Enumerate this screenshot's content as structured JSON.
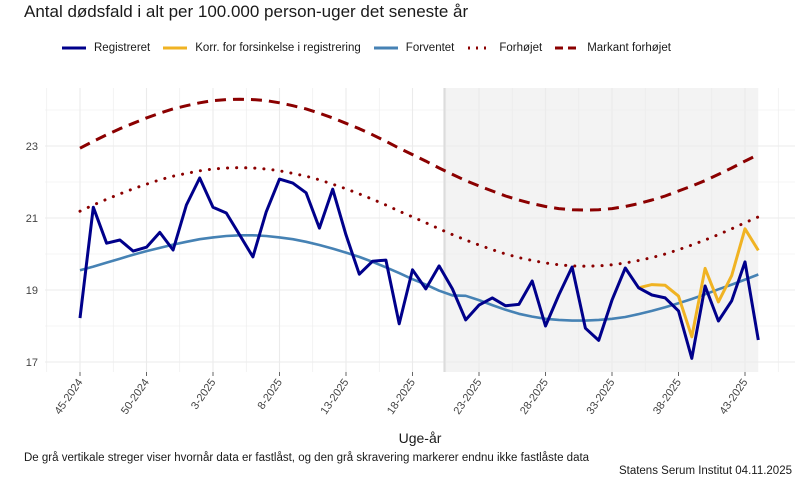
{
  "title": "Antal dødsfald i alt per 100.000 person-uger det seneste år",
  "legend": [
    {
      "label": "Registreret",
      "color": "#00008B",
      "style": "solid"
    },
    {
      "label": "Korr. for forsinkelse i registrering",
      "color": "#F0B323",
      "style": "solid"
    },
    {
      "label": "Forventet",
      "color": "#4682B4",
      "style": "solid"
    },
    {
      "label": "Forhøjet",
      "color": "#8B0000",
      "style": "dotted"
    },
    {
      "label": "Markant forhøjet",
      "color": "#8B0000",
      "style": "dashed"
    }
  ],
  "note": "De grå vertikale streger viser hvornår data er fastlåst, og den grå skravering markerer endnu ikke fastlåste data",
  "source": "Statens Serum Institut  04.11.2025",
  "chart_data": {
    "type": "line",
    "title": "Antal dødsfald i alt per 100.000 person-uger det seneste år",
    "xlabel": "Uge-år",
    "ylabel": "",
    "ylim": [
      16.7,
      24.8
    ],
    "yticks": [
      17,
      19,
      21,
      23
    ],
    "xtick_labels": [
      "45-2024",
      "50-2024",
      "3-2025",
      "8-2025",
      "13-2025",
      "18-2025",
      "23-2025",
      "28-2025",
      "33-2025",
      "38-2025",
      "43-2025"
    ],
    "x": [
      "45-2024",
      "46-2024",
      "47-2024",
      "48-2024",
      "49-2024",
      "50-2024",
      "51-2024",
      "52-2024",
      "1-2025",
      "2-2025",
      "3-2025",
      "4-2025",
      "5-2025",
      "6-2025",
      "7-2025",
      "8-2025",
      "9-2025",
      "10-2025",
      "11-2025",
      "12-2025",
      "13-2025",
      "14-2025",
      "15-2025",
      "16-2025",
      "17-2025",
      "18-2025",
      "19-2025",
      "20-2025",
      "21-2025",
      "22-2025",
      "23-2025",
      "24-2025",
      "25-2025",
      "26-2025",
      "27-2025",
      "28-2025",
      "29-2025",
      "30-2025",
      "31-2025",
      "32-2025",
      "33-2025",
      "34-2025",
      "35-2025",
      "36-2025",
      "37-2025",
      "38-2025",
      "39-2025",
      "40-2025",
      "41-2025",
      "42-2025",
      "43-2025",
      "44-2025"
    ],
    "grid": true,
    "legend_position": "top",
    "shaded_from_week": "20-2025",
    "series": [
      {
        "name": "Registreret",
        "values": [
          18.22,
          21.3,
          20.3,
          20.39,
          20.08,
          20.19,
          20.6,
          20.11,
          21.36,
          22.11,
          21.3,
          21.14,
          20.53,
          19.92,
          21.17,
          22.08,
          21.97,
          21.7,
          20.72,
          21.8,
          20.53,
          19.44,
          19.8,
          19.83,
          18.06,
          19.56,
          19.03,
          19.67,
          19.03,
          18.17,
          18.58,
          18.78,
          18.56,
          18.6,
          19.25,
          18.0,
          18.86,
          19.64,
          17.94,
          17.6,
          18.72,
          19.61,
          19.06,
          18.86,
          18.78,
          18.42,
          17.1,
          19.11,
          18.14,
          18.7,
          19.78,
          17.61
        ]
      },
      {
        "name": "Korr. for forsinkelse i registrering",
        "values": [
          null,
          null,
          null,
          null,
          null,
          null,
          null,
          null,
          null,
          null,
          null,
          null,
          null,
          null,
          null,
          null,
          null,
          null,
          null,
          null,
          null,
          null,
          null,
          null,
          null,
          null,
          null,
          null,
          null,
          null,
          null,
          null,
          null,
          null,
          null,
          null,
          null,
          null,
          null,
          null,
          null,
          null,
          19.06,
          19.15,
          19.13,
          18.83,
          17.7,
          19.6,
          18.67,
          19.4,
          20.7,
          20.1
        ]
      },
      {
        "name": "Forventet",
        "values": [
          19.55,
          19.65,
          19.76,
          19.87,
          19.98,
          20.08,
          20.17,
          20.26,
          20.34,
          20.41,
          20.46,
          20.5,
          20.52,
          20.52,
          20.5,
          20.46,
          20.41,
          20.34,
          20.25,
          20.15,
          20.04,
          19.92,
          19.78,
          19.63,
          19.47,
          19.3,
          19.15,
          18.98,
          18.85,
          18.84,
          18.72,
          18.58,
          18.45,
          18.34,
          18.26,
          18.2,
          18.17,
          18.15,
          18.15,
          18.17,
          18.2,
          18.25,
          18.33,
          18.42,
          18.52,
          18.63,
          18.75,
          18.88,
          19.02,
          19.15,
          19.29,
          19.43
        ]
      },
      {
        "name": "Forhøjet",
        "values": [
          21.19,
          21.36,
          21.52,
          21.67,
          21.81,
          21.94,
          22.06,
          22.16,
          22.24,
          22.31,
          22.36,
          22.39,
          22.4,
          22.39,
          22.36,
          22.31,
          22.24,
          22.16,
          22.06,
          21.94,
          21.81,
          21.67,
          21.52,
          21.36,
          21.19,
          21.03,
          20.87,
          20.7,
          20.54,
          20.39,
          20.25,
          20.12,
          20.0,
          19.9,
          19.82,
          19.75,
          19.7,
          19.67,
          19.66,
          19.67,
          19.7,
          19.75,
          19.82,
          19.9,
          20.0,
          20.12,
          20.25,
          20.39,
          20.54,
          20.7,
          20.87,
          21.03
        ]
      },
      {
        "name": "Markant forhøjet",
        "values": [
          22.94,
          23.13,
          23.31,
          23.48,
          23.63,
          23.78,
          23.91,
          24.03,
          24.12,
          24.2,
          24.26,
          24.29,
          24.3,
          24.29,
          24.26,
          24.2,
          24.12,
          24.03,
          23.91,
          23.78,
          23.63,
          23.48,
          23.31,
          23.13,
          22.94,
          22.76,
          22.58,
          22.39,
          22.21,
          22.04,
          21.89,
          21.75,
          21.61,
          21.5,
          21.4,
          21.32,
          21.26,
          21.23,
          21.22,
          21.23,
          21.26,
          21.32,
          21.4,
          21.5,
          21.61,
          21.75,
          21.89,
          22.04,
          22.21,
          22.39,
          22.58,
          22.76
        ]
      }
    ]
  }
}
